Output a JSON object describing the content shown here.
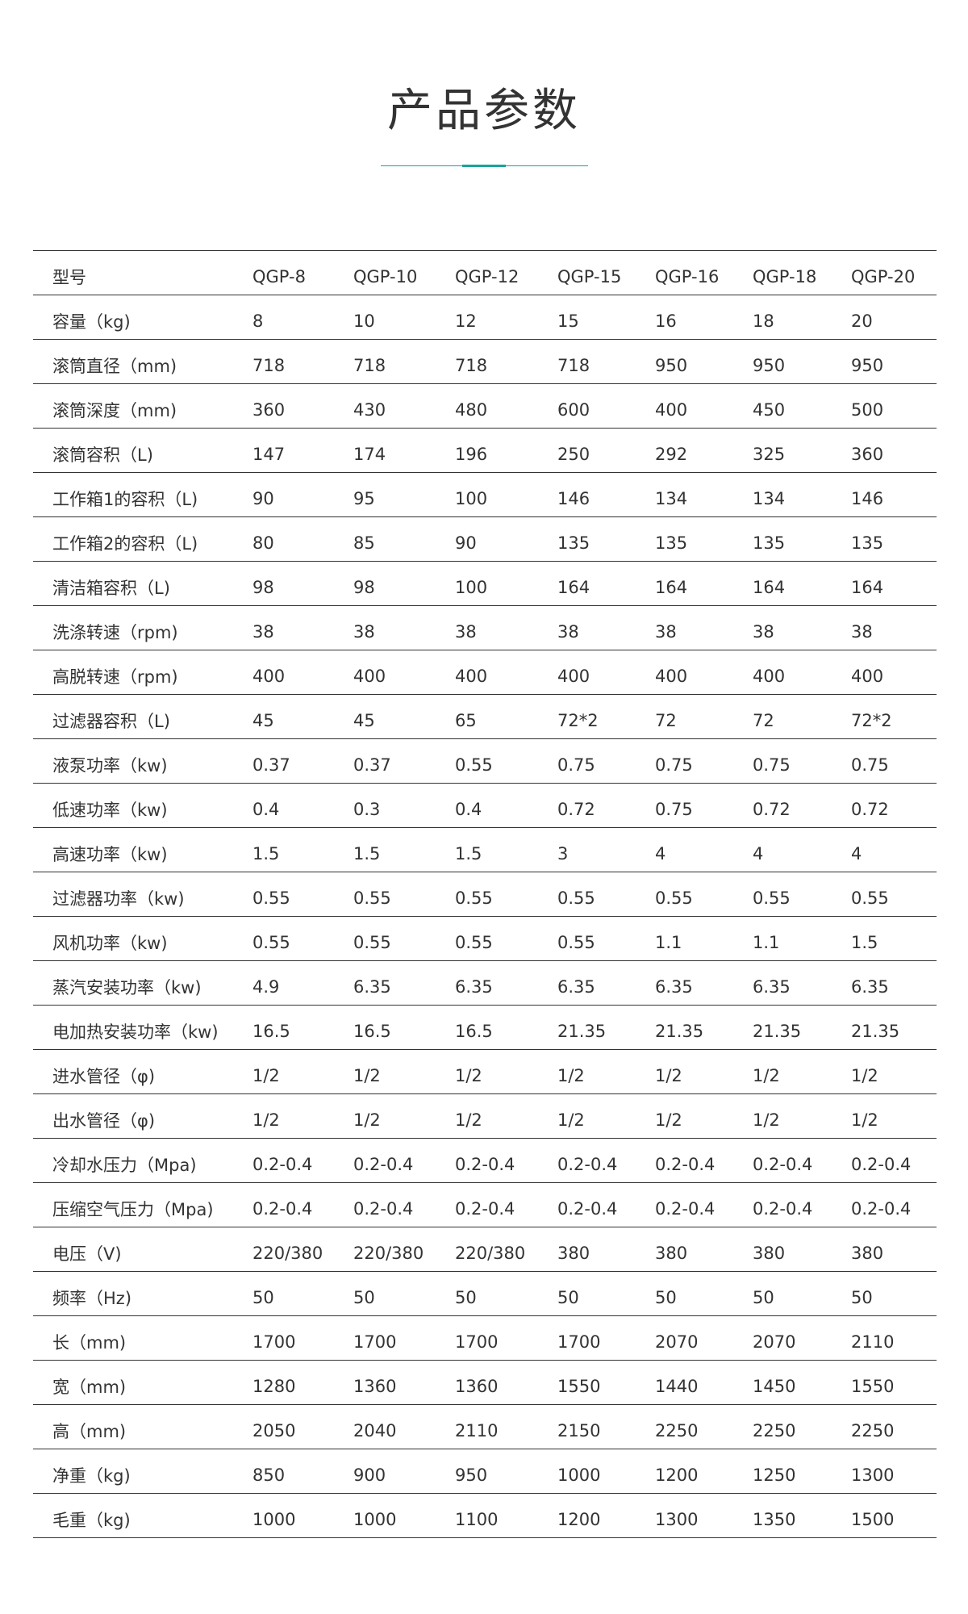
{
  "title": "产品参数",
  "accent_color": "#1aa39a",
  "table": {
    "header": [
      "型号",
      "QGP-8",
      "QGP-10",
      "QGP-12",
      "QGP-15",
      "QGP-16",
      "QGP-18",
      "QGP-20"
    ],
    "rows": [
      [
        "容量（kg)",
        "8",
        "10",
        "12",
        "15",
        "16",
        "18",
        "20"
      ],
      [
        "滚筒直径（mm)",
        "718",
        "718",
        "718",
        "718",
        "950",
        "950",
        "950"
      ],
      [
        "滚筒深度（mm)",
        "360",
        "430",
        "480",
        "600",
        "400",
        "450",
        "500"
      ],
      [
        "滚筒容积（L)",
        "147",
        "174",
        "196",
        "250",
        "292",
        "325",
        "360"
      ],
      [
        "工作箱1的容积（L)",
        "90",
        "95",
        "100",
        "146",
        "134",
        "134",
        "146"
      ],
      [
        "工作箱2的容积（L)",
        "80",
        "85",
        "90",
        "135",
        "135",
        "135",
        "135"
      ],
      [
        "清洁箱容积（L)",
        "98",
        "98",
        "100",
        "164",
        "164",
        "164",
        "164"
      ],
      [
        "洗涤转速（rpm)",
        "38",
        "38",
        "38",
        "38",
        "38",
        "38",
        "38"
      ],
      [
        "高脱转速（rpm)",
        "400",
        "400",
        "400",
        "400",
        "400",
        "400",
        "400"
      ],
      [
        "过滤器容积（L)",
        "45",
        "45",
        "65",
        "72*2",
        "72",
        "72",
        "72*2"
      ],
      [
        "液泵功率（kw)",
        "0.37",
        "0.37",
        "0.55",
        "0.75",
        "0.75",
        "0.75",
        "0.75"
      ],
      [
        "低速功率（kw)",
        "0.4",
        "0.3",
        "0.4",
        "0.72",
        "0.75",
        "0.72",
        "0.72"
      ],
      [
        "高速功率（kw)",
        "1.5",
        "1.5",
        "1.5",
        "3",
        "4",
        "4",
        "4"
      ],
      [
        "过滤器功率（kw)",
        "0.55",
        "0.55",
        "0.55",
        "0.55",
        "0.55",
        "0.55",
        "0.55"
      ],
      [
        "风机功率（kw)",
        "0.55",
        "0.55",
        "0.55",
        "0.55",
        "1.1",
        "1.1",
        "1.5"
      ],
      [
        "蒸汽安装功率（kw)",
        "4.9",
        "6.35",
        "6.35",
        "6.35",
        "6.35",
        "6.35",
        "6.35"
      ],
      [
        "电加热安装功率（kw)",
        "16.5",
        "16.5",
        "16.5",
        "21.35",
        "21.35",
        "21.35",
        "21.35"
      ],
      [
        "进水管径（φ)",
        "1/2",
        "1/2",
        "1/2",
        "1/2",
        "1/2",
        "1/2",
        "1/2"
      ],
      [
        "出水管径（φ)",
        "1/2",
        "1/2",
        "1/2",
        "1/2",
        "1/2",
        "1/2",
        "1/2"
      ],
      [
        "冷却水压力（Mpa)",
        "0.2-0.4",
        "0.2-0.4",
        "0.2-0.4",
        "0.2-0.4",
        "0.2-0.4",
        "0.2-0.4",
        "0.2-0.4"
      ],
      [
        "压缩空气压力（Mpa)",
        "0.2-0.4",
        "0.2-0.4",
        "0.2-0.4",
        "0.2-0.4",
        "0.2-0.4",
        "0.2-0.4",
        "0.2-0.4"
      ],
      [
        "电压（V)",
        "220/380",
        "220/380",
        "220/380",
        "380",
        "380",
        "380",
        "380"
      ],
      [
        "频率（Hz)",
        "50",
        "50",
        "50",
        "50",
        "50",
        "50",
        "50"
      ],
      [
        "长（mm)",
        "1700",
        "1700",
        "1700",
        "1700",
        "2070",
        "2070",
        "2110"
      ],
      [
        "宽（mm)",
        "1280",
        "1360",
        "1360",
        "1550",
        "1440",
        "1450",
        "1550"
      ],
      [
        "高（mm)",
        "2050",
        "2040",
        "2110",
        "2150",
        "2250",
        "2250",
        "2250"
      ],
      [
        "净重（kg)",
        "850",
        "900",
        "950",
        "1000",
        "1200",
        "1250",
        "1300"
      ],
      [
        "毛重（kg)",
        "1000",
        "1000",
        "1100",
        "1200",
        "1300",
        "1350",
        "1500"
      ]
    ]
  }
}
